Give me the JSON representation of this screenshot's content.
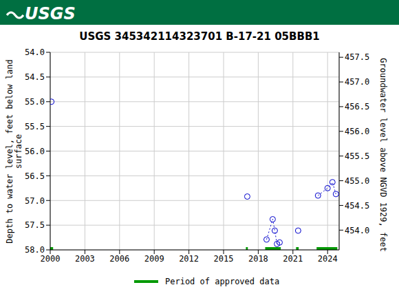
{
  "chart_data": {
    "type": "scatter",
    "header": "USGS",
    "title": "USGS 345342114323701 B-17-21 05BBB1",
    "y_label": "Depth to water level, feet below land surface",
    "y2_label": "Groundwater level above NGVD 1929, feet",
    "x": [
      2000.1,
      2000.1,
      2017.05,
      2017.05,
      2018.72,
      2019.25,
      2019.43,
      2019.62,
      2019.85,
      2019.85,
      2021.45,
      2021.45,
      2023.17,
      2024.0,
      2024.42,
      2024.72
    ],
    "values": [
      55.0,
      null,
      56.92,
      null,
      57.79,
      57.38,
      57.61,
      57.88,
      57.85,
      null,
      57.61,
      null,
      56.9,
      56.75,
      56.63,
      56.87
    ],
    "color": "#0000cc",
    "marker": "circle",
    "line_style": "dotted",
    "xlim": [
      2000,
      2025
    ],
    "xticks": [
      2000,
      2003,
      2006,
      2009,
      2012,
      2015,
      2018,
      2021,
      2024
    ],
    "ylim": [
      54,
      58
    ],
    "yticks": [
      {
        "value": 54,
        "label": "54.0"
      },
      {
        "value": 54.5,
        "label": "54.5"
      },
      {
        "value": 55,
        "label": "55.0"
      },
      {
        "value": 55.5,
        "label": "55.5"
      },
      {
        "value": 56,
        "label": "56.0"
      },
      {
        "value": 56.5,
        "label": "56.5"
      },
      {
        "value": 57,
        "label": "57.0"
      },
      {
        "value": 57.5,
        "label": "57.5"
      },
      {
        "value": 58,
        "label": "58.0"
      }
    ],
    "y2lim": [
      453.6,
      457.6
    ],
    "y2ticks": [
      {
        "value": 454,
        "label": "454.0"
      },
      {
        "value": 454.5,
        "label": "454.5"
      },
      {
        "value": 455,
        "label": "455.0"
      },
      {
        "value": 455.5,
        "label": "455.5"
      },
      {
        "value": 456,
        "label": "456.0"
      },
      {
        "value": 456.5,
        "label": "456.5"
      },
      {
        "value": 457,
        "label": "457.0"
      },
      {
        "value": 457.5,
        "label": "457.5"
      }
    ],
    "grid": true,
    "legend": "bottom",
    "approved_periods": {
      "name": "Period of approved data",
      "color": "#009900",
      "ranges": [
        [
          2000,
          2000.25
        ],
        [
          2016.93,
          2017.1
        ],
        [
          2018.6,
          2019.95
        ],
        [
          2021.27,
          2021.5
        ],
        [
          2023.05,
          2024.84
        ]
      ]
    }
  }
}
